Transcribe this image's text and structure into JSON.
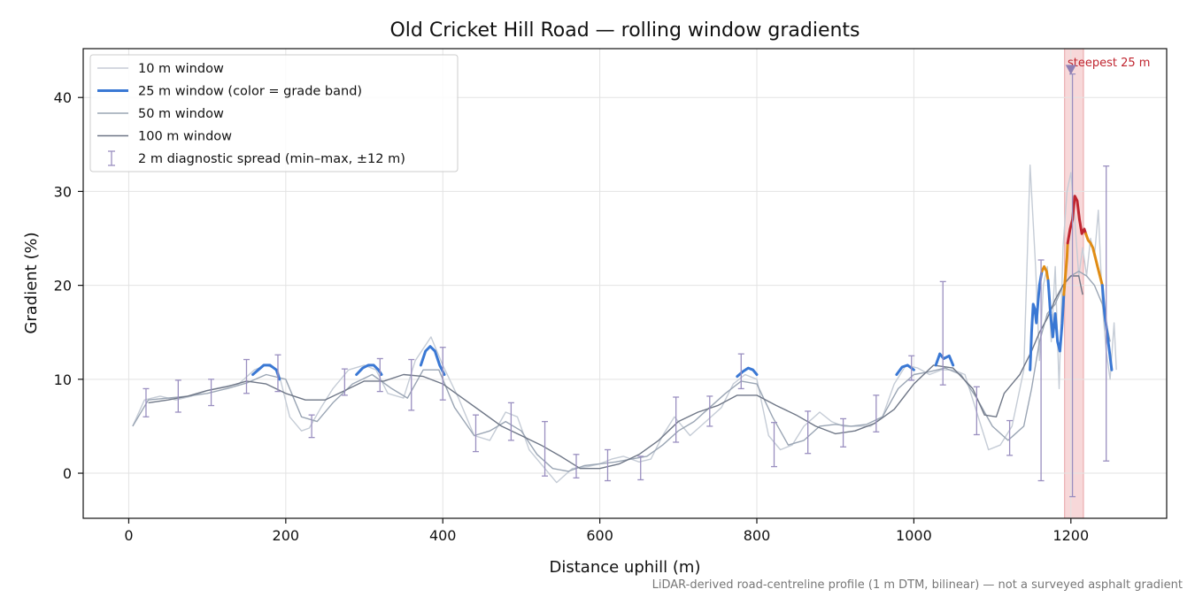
{
  "chart_data": {
    "type": "line",
    "title": "Old Cricket Hill Road — rolling window gradients",
    "xlabel": "Distance uphill (m)",
    "ylabel": "Gradient (%)",
    "xlim": [
      -58,
      1322
    ],
    "ylim": [
      -4.8,
      45.2
    ],
    "xticks": [
      0,
      200,
      400,
      600,
      800,
      1000,
      1200
    ],
    "yticks": [
      0,
      10,
      20,
      30,
      40
    ],
    "grid": true,
    "legend_position": "top-left",
    "footnote": "LiDAR-derived road-centreline profile (1 m DTM, bilinear) — not a surveyed asphalt gradient",
    "annotation": {
      "text": "steepest 25 m",
      "x": 1200,
      "y": 43,
      "color": "#c0252f"
    },
    "highlight_span": {
      "x0": 1192,
      "x1": 1216,
      "color": "#f4c7c9"
    },
    "legend": [
      {
        "label": "10 m window",
        "color": "#c5ccd6",
        "style": "line"
      },
      {
        "label": "25 m window (color = grade band)",
        "color": "#3a78d4",
        "style": "thick-line"
      },
      {
        "label": "50 m window",
        "color": "#9aa5b4",
        "style": "line"
      },
      {
        "label": "100 m window",
        "color": "#6f7787",
        "style": "line"
      },
      {
        "label": "2 m diagnostic spread (min–max, ±12 m)",
        "color": "#9a8fc0",
        "style": "errorbar"
      }
    ],
    "series": [
      {
        "name": "10 m window",
        "color": "#c5ccd6",
        "width": 1.4,
        "x": [
          5,
          20,
          40,
          60,
          80,
          100,
          120,
          140,
          160,
          175,
          190,
          205,
          220,
          230,
          245,
          260,
          280,
          300,
          315,
          330,
          350,
          365,
          385,
          400,
          420,
          440,
          460,
          480,
          495,
          510,
          530,
          545,
          565,
          585,
          600,
          615,
          630,
          650,
          665,
          680,
          695,
          715,
          735,
          755,
          770,
          785,
          800,
          815,
          830,
          845,
          860,
          880,
          895,
          910,
          925,
          945,
          960,
          975,
          990,
          1005,
          1020,
          1035,
          1050,
          1065,
          1080,
          1095,
          1110,
          1125,
          1140,
          1148,
          1155,
          1160,
          1165,
          1170,
          1175,
          1180,
          1185,
          1190,
          1195,
          1200,
          1205,
          1210,
          1215,
          1220,
          1225,
          1230,
          1235,
          1240,
          1245,
          1250,
          1255,
          1258
        ],
        "y": [
          5,
          7.8,
          8.2,
          7.8,
          8.2,
          8.8,
          9.2,
          9.5,
          11,
          11.5,
          11,
          6,
          4.5,
          4.8,
          7,
          9,
          11,
          11.5,
          11,
          8.5,
          8,
          12,
          14.5,
          11.5,
          8,
          4,
          3.5,
          6.5,
          6,
          2.5,
          0.5,
          -1,
          0.5,
          0.7,
          1,
          1.5,
          1.8,
          1.2,
          1.5,
          4,
          6,
          4,
          5.5,
          7,
          9.5,
          10.5,
          10,
          4,
          2.5,
          3,
          5,
          6.5,
          5.5,
          5,
          5,
          5,
          6,
          9.5,
          11.5,
          11.2,
          10.5,
          11,
          11,
          10.5,
          6.5,
          2.5,
          3,
          5,
          11,
          32.8,
          22,
          12,
          20,
          22,
          14,
          22,
          9,
          24,
          30,
          32,
          27,
          21,
          24,
          21,
          25,
          23,
          28,
          18,
          13,
          10,
          16,
          11
        ]
      },
      {
        "name": "50 m window",
        "color": "#9aa5b4",
        "width": 1.4,
        "x": [
          5,
          25,
          50,
          75,
          100,
          125,
          150,
          175,
          200,
          220,
          240,
          260,
          285,
          310,
          335,
          355,
          375,
          395,
          415,
          440,
          460,
          480,
          500,
          520,
          540,
          560,
          580,
          600,
          620,
          640,
          660,
          680,
          700,
          720,
          740,
          760,
          780,
          800,
          820,
          840,
          860,
          880,
          900,
          920,
          940,
          960,
          980,
          1000,
          1020,
          1040,
          1060,
          1080,
          1100,
          1120,
          1140,
          1150,
          1160,
          1170,
          1180,
          1190,
          1200,
          1210,
          1220,
          1230,
          1240,
          1250
        ],
        "y": [
          5,
          7.8,
          8,
          8.2,
          8.5,
          9,
          9.6,
          10.5,
          10,
          6,
          5.5,
          7.5,
          9.5,
          10.5,
          9,
          8,
          11,
          11,
          7,
          4,
          4.5,
          5.5,
          4.5,
          2,
          0.5,
          0.2,
          0.8,
          1,
          1.2,
          1.5,
          1.8,
          3,
          4.5,
          5.5,
          7,
          8.5,
          9.8,
          9.5,
          6,
          3,
          3.5,
          5,
          5.2,
          5,
          5.2,
          6,
          9,
          10.5,
          10.8,
          11.2,
          10.5,
          8,
          5,
          3.5,
          5,
          9,
          14,
          17,
          18,
          20,
          21,
          21.5,
          21,
          20,
          18,
          14
        ]
      },
      {
        "name": "100 m window",
        "color": "#6f7787",
        "width": 1.4,
        "x": [
          25,
          50,
          75,
          100,
          125,
          150,
          175,
          200,
          225,
          250,
          275,
          300,
          325,
          350,
          375,
          400,
          425,
          450,
          475,
          500,
          525,
          550,
          575,
          600,
          625,
          650,
          675,
          700,
          725,
          750,
          775,
          800,
          825,
          850,
          875,
          900,
          925,
          950,
          975,
          1000,
          1025,
          1050,
          1075,
          1090,
          1105,
          1115,
          1125,
          1135,
          1150,
          1160,
          1170,
          1180,
          1190,
          1200,
          1210,
          1215
        ],
        "y": [
          7.5,
          7.8,
          8.2,
          8.8,
          9.2,
          9.8,
          9.5,
          8.5,
          7.8,
          7.8,
          8.8,
          9.8,
          9.8,
          10.5,
          10.3,
          9.5,
          8,
          6.5,
          5,
          4,
          3,
          1.8,
          0.5,
          0.5,
          1,
          2,
          3.5,
          5.5,
          6.5,
          7.2,
          8.3,
          8.3,
          7.2,
          6.2,
          5,
          4.2,
          4.5,
          5.3,
          6.8,
          9.5,
          11.5,
          11.2,
          9,
          6.2,
          6,
          8.5,
          9.5,
          10.5,
          13,
          15,
          16.5,
          18.5,
          20,
          21,
          21,
          19
        ]
      }
    ],
    "series_25m": {
      "name": "25 m window (color = grade band)",
      "width": 3,
      "segments": [
        {
          "band": "under 20%",
          "color": "#3a78d4",
          "x": [
            158,
            165,
            172,
            180,
            188,
            192
          ],
          "y": [
            10.5,
            11,
            11.5,
            11.5,
            11,
            10
          ]
        },
        {
          "band": "under 20%",
          "color": "#3a78d4",
          "x": [
            290,
            298,
            305,
            312,
            318,
            322
          ],
          "y": [
            10.5,
            11.2,
            11.5,
            11.5,
            11,
            10.5
          ]
        },
        {
          "band": "under 20%",
          "color": "#3a78d4",
          "x": [
            372,
            378,
            384,
            390,
            396,
            402
          ],
          "y": [
            11.5,
            13,
            13.5,
            13,
            11.5,
            10.5
          ]
        },
        {
          "band": "under 20%",
          "color": "#3a78d4",
          "x": [
            775,
            782,
            789,
            795,
            800
          ],
          "y": [
            10.3,
            10.8,
            11.2,
            11,
            10.5
          ]
        },
        {
          "band": "under 20%",
          "color": "#3a78d4",
          "x": [
            978,
            985,
            992,
            1000
          ],
          "y": [
            10.5,
            11.3,
            11.5,
            11
          ]
        },
        {
          "band": "under 20%",
          "color": "#3a78d4",
          "x": [
            1028,
            1033,
            1038,
            1045,
            1050
          ],
          "y": [
            11.5,
            12.7,
            12.2,
            12.5,
            11.5
          ]
        },
        {
          "band": "under 20%",
          "color": "#3a78d4",
          "x": [
            1148,
            1150,
            1152,
            1154,
            1156,
            1158,
            1160,
            1163
          ],
          "y": [
            11,
            15,
            18,
            17.5,
            16,
            18,
            20,
            21.5
          ]
        },
        {
          "band": "20–25%",
          "color": "#e08c14",
          "x": [
            1163,
            1166,
            1169,
            1171
          ],
          "y": [
            21.5,
            22,
            21.5,
            20.5
          ]
        },
        {
          "band": "under 20%",
          "color": "#3a78d4",
          "x": [
            1171,
            1174,
            1177,
            1180,
            1183,
            1186,
            1189,
            1191
          ],
          "y": [
            20.5,
            17,
            14.5,
            17,
            14,
            13,
            16,
            19
          ]
        },
        {
          "band": "20–25%",
          "color": "#e08c14",
          "x": [
            1191,
            1193,
            1195,
            1196
          ],
          "y": [
            19,
            21,
            23,
            24.5
          ]
        },
        {
          "band": "25%+",
          "color": "#c0252f",
          "x": [
            1196,
            1199,
            1202,
            1205,
            1208,
            1211,
            1214,
            1217,
            1219
          ],
          "y": [
            24.5,
            26,
            27,
            29.5,
            29,
            27,
            25.5,
            26,
            25.5
          ]
        },
        {
          "band": "20–25%",
          "color": "#e08c14",
          "x": [
            1219,
            1222,
            1225,
            1228,
            1231,
            1234,
            1237,
            1240
          ],
          "y": [
            25.5,
            24.8,
            24.5,
            24,
            23,
            22,
            21,
            20
          ]
        },
        {
          "band": "under 20%",
          "color": "#3a78d4",
          "x": [
            1240,
            1243,
            1246,
            1249,
            1252
          ],
          "y": [
            20,
            17,
            15,
            13,
            11
          ]
        }
      ]
    },
    "error_bars": {
      "name": "2 m diagnostic spread (min–max, ±12 m)",
      "color": "#9a8fc0",
      "x": [
        22,
        63,
        105,
        150,
        190,
        233,
        275,
        320,
        360,
        400,
        442,
        487,
        530,
        570,
        610,
        652,
        697,
        740,
        780,
        822,
        865,
        910,
        952,
        997,
        1037,
        1080,
        1122,
        1162,
        1202,
        1245
      ],
      "low": [
        6,
        6.5,
        7.2,
        8.5,
        8.7,
        3.8,
        8.3,
        8.7,
        6.7,
        7.8,
        2.3,
        3.5,
        -0.3,
        -0.5,
        -0.8,
        -0.7,
        3.3,
        5,
        9,
        0.7,
        2.1,
        2.8,
        4.4,
        9.9,
        9.4,
        4.1,
        1.9,
        -0.8,
        -2.5,
        1.3
      ],
      "high": [
        9,
        9.9,
        10,
        12.1,
        12.6,
        6.2,
        11.1,
        12.2,
        12.1,
        13.4,
        6.2,
        7.5,
        5.5,
        2,
        2.5,
        1.8,
        8.1,
        8.2,
        12.7,
        5.4,
        6.6,
        5.8,
        8.3,
        12.5,
        20.4,
        9.2,
        5.6,
        22.7,
        42.5,
        32.7
      ]
    }
  }
}
